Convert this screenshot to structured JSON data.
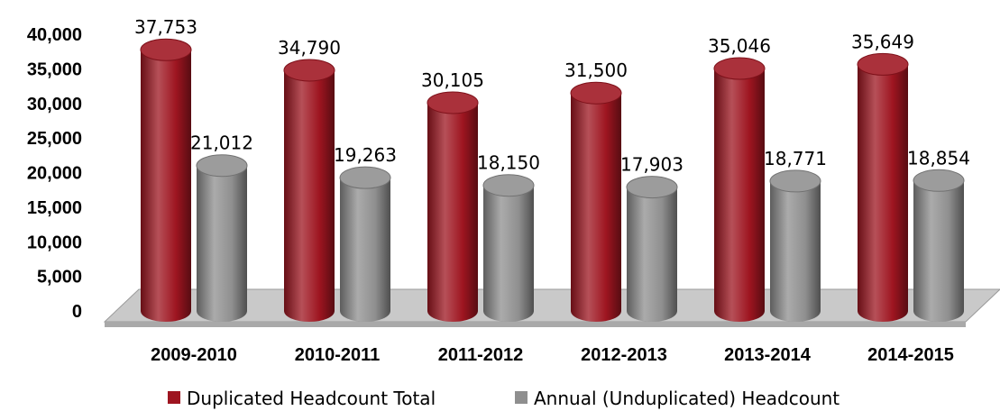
{
  "chart_data": {
    "type": "bar",
    "categories": [
      "2009-2010",
      "2010-2011",
      "2011-2012",
      "2012-2013",
      "2013-2014",
      "2014-2015"
    ],
    "series": [
      {
        "name": "Duplicated Headcount Total",
        "values": [
          37753,
          34790,
          30105,
          31500,
          35046,
          35649
        ],
        "color": "#9e1520"
      },
      {
        "name": "Annual (Unduplicated) Headcount",
        "values": [
          21012,
          19263,
          18150,
          17903,
          18771,
          18854
        ],
        "color": "#8f8f8f"
      }
    ],
    "data_labels": [
      [
        "37,753",
        "34,790",
        "30,105",
        "31,500",
        "35,046",
        "35,649"
      ],
      [
        "21,012",
        "19,263",
        "18,150",
        "17,903",
        "18,771",
        "18,854"
      ]
    ],
    "yticks": [
      "0",
      "5,000",
      "10,000",
      "15,000",
      "20,000",
      "25,000",
      "30,000",
      "35,000",
      "40,000"
    ],
    "ylim": [
      0,
      40000
    ],
    "title": "",
    "xlabel": "",
    "ylabel": "",
    "legend_position": "bottom",
    "grid": false,
    "style": "3d-cylinder"
  }
}
